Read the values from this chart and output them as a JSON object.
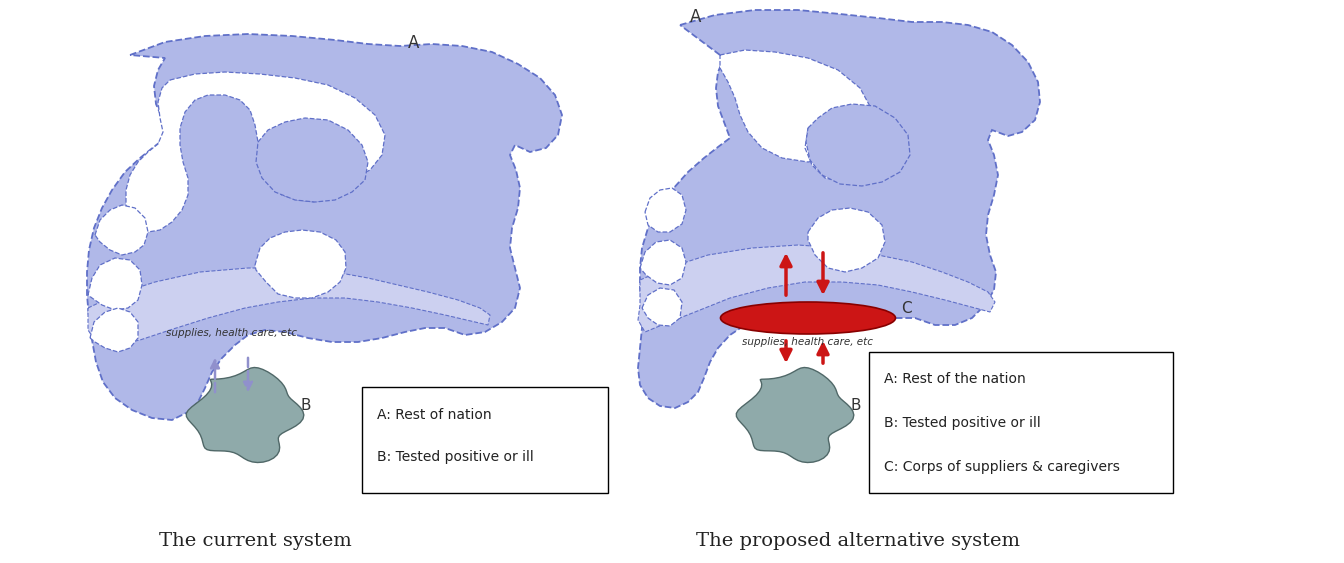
{
  "bg_color": "#ffffff",
  "left_title": "The current system",
  "right_title": "The proposed alternative system",
  "left_legend": [
    "A: Rest of nation",
    "B: Tested positive or ill"
  ],
  "right_legend": [
    "A: Rest of the nation",
    "B: Tested positive or ill",
    "C: Corps of suppliers & caregivers"
  ],
  "sponge_color": "#b0b8e8",
  "sponge_edge_color": "#6070c8",
  "blob_color": "#8faaaa",
  "blob_edge_color": "#506868",
  "ellipse_color": "#cc1515",
  "arrow_blue": "#9090cc",
  "arrow_red": "#cc1515",
  "label_color": "#222222",
  "supplies_text": "supplies, health care, etc"
}
